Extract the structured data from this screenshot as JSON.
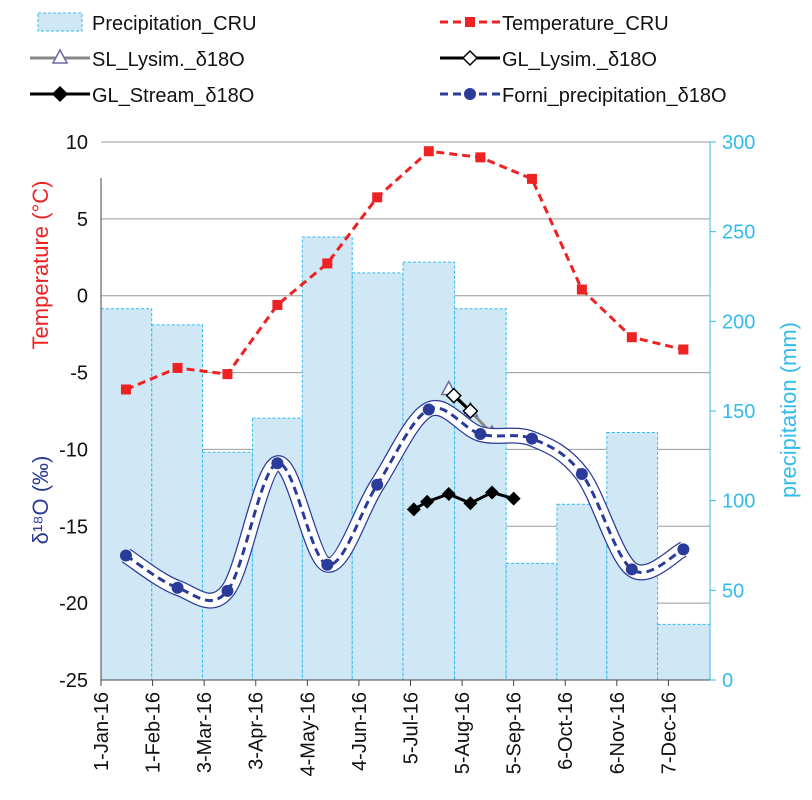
{
  "chart_data": {
    "type": "combo",
    "y_label": "Temperature (°C)",
    "y_label2": "δ¹⁸O (‰)",
    "y2_label": "precipitation (mm)",
    "xlim": [
      0,
      366
    ],
    "xticks": [
      {
        "value": 0,
        "label": "1-Jan-16"
      },
      {
        "value": 31,
        "label": "1-Feb-16"
      },
      {
        "value": 62,
        "label": "3-Mar-16"
      },
      {
        "value": 93,
        "label": "3-Apr-16"
      },
      {
        "value": 124,
        "label": "4-May-16"
      },
      {
        "value": 155,
        "label": "4-Jun-16"
      },
      {
        "value": 186,
        "label": "5-Jul-16"
      },
      {
        "value": 217,
        "label": "5-Aug-16"
      },
      {
        "value": 248,
        "label": "5-Sep-16"
      },
      {
        "value": 279,
        "label": "6-Oct-16"
      },
      {
        "value": 310,
        "label": "6-Nov-16"
      },
      {
        "value": 341,
        "label": "7-Dec-16"
      }
    ],
    "ylim": [
      -25,
      10
    ],
    "yticks": [
      -25,
      -20,
      -15,
      -10,
      -5,
      0,
      5,
      10
    ],
    "y2lim": [
      0,
      300
    ],
    "y2ticks": [
      0,
      50,
      100,
      150,
      200,
      250,
      300
    ],
    "grid": true,
    "series": [
      {
        "name": "Precipitation_CRU",
        "type": "bar",
        "axis": "y2",
        "color": "#d0e7f6",
        "x": [
          15,
          46,
          76,
          106,
          136,
          166,
          197,
          228,
          259,
          289,
          319,
          350
        ],
        "values": [
          207,
          198,
          127,
          146,
          247,
          227,
          233,
          207,
          65,
          98,
          138,
          31
        ]
      },
      {
        "name": "Temperature_CRU",
        "type": "line",
        "color": "#ee2222",
        "marker": "square",
        "dashed": true,
        "x": [
          15,
          46,
          76,
          106,
          136,
          166,
          197,
          228,
          259,
          289,
          319,
          350
        ],
        "values": [
          -6.1,
          -4.7,
          -5.1,
          -0.6,
          2.1,
          6.4,
          9.4,
          9.0,
          7.6,
          0.4,
          -2.7,
          -3.5
        ]
      },
      {
        "name": "SL_Lysim._δ18O",
        "type": "line",
        "color": "#888888",
        "marker": "triangle",
        "x": [
          209,
          222,
          235
        ],
        "values": [
          -6.1,
          -7.5,
          -9.0
        ]
      },
      {
        "name": "GL_Lysim._δ18O",
        "type": "line",
        "color": "#000000",
        "marker": "diamond-open",
        "x": [
          212,
          222
        ],
        "values": [
          -6.5,
          -7.5
        ]
      },
      {
        "name": "GL_Stream_δ18O",
        "type": "line",
        "color": "#000000",
        "marker": "diamond",
        "x": [
          188,
          196,
          209,
          222,
          235,
          248
        ],
        "values": [
          -13.9,
          -13.4,
          -12.9,
          -13.5,
          -12.8,
          -13.2
        ]
      },
      {
        "name": "Forni_precipitation_δ18O",
        "type": "line",
        "color": "#2b3b9a",
        "marker": "circle",
        "dashed": true,
        "smooth": true,
        "band": true,
        "x": [
          15,
          46,
          76,
          106,
          136,
          166,
          197,
          228,
          259,
          289,
          319,
          350
        ],
        "values": [
          -16.9,
          -19.0,
          -19.2,
          -10.9,
          -17.5,
          -12.3,
          -7.4,
          -9.0,
          -9.3,
          -11.6,
          -17.8,
          -16.5
        ]
      }
    ]
  }
}
